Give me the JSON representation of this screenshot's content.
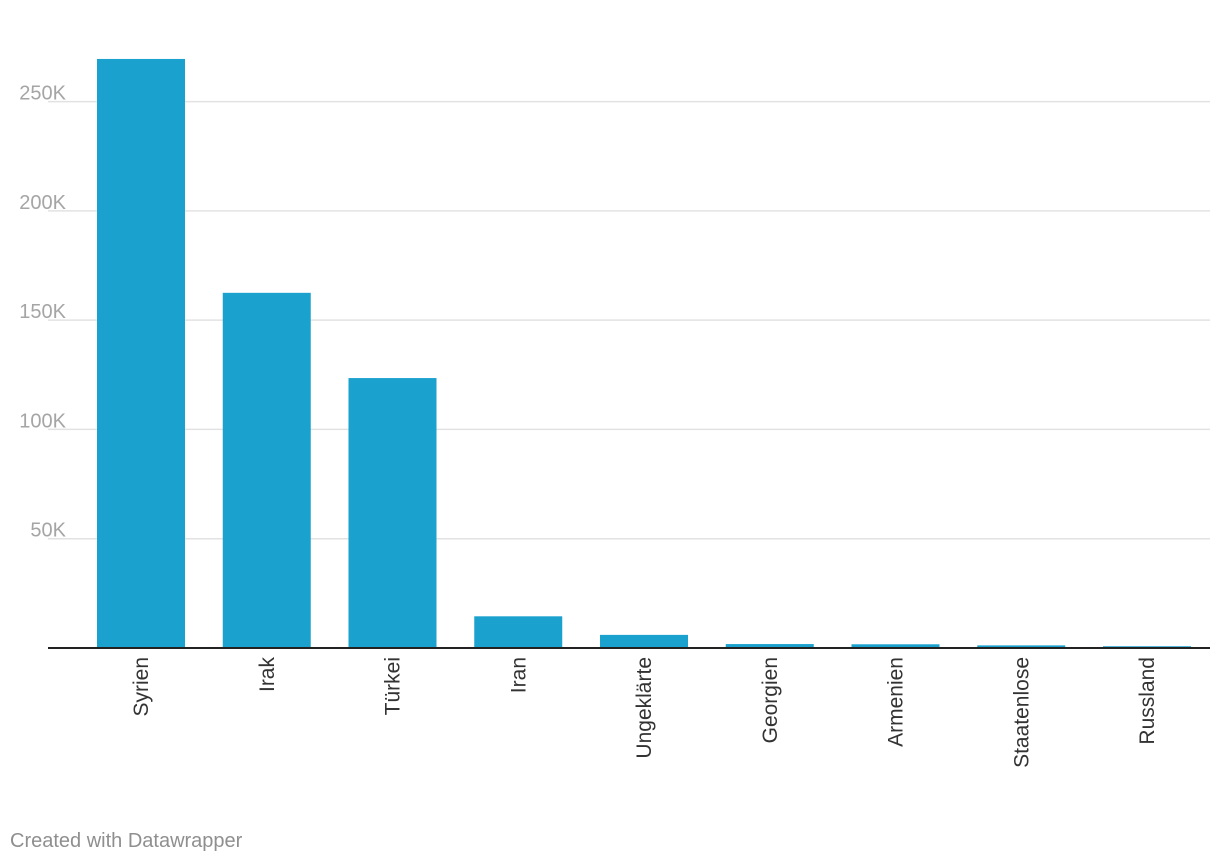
{
  "chart_data": {
    "type": "bar",
    "categories": [
      "Syrien",
      "Irak",
      "Türkei",
      "Iran",
      "Ungeklärte",
      "Georgien",
      "Armenien",
      "Staatenlose",
      "Russland"
    ],
    "values": [
      269500,
      162500,
      123500,
      14500,
      6000,
      1800,
      1700,
      1200,
      800
    ],
    "ylim": [
      0,
      280000
    ],
    "yticks": [
      {
        "value": 50000,
        "label": "50K"
      },
      {
        "value": 100000,
        "label": "100K"
      },
      {
        "value": 150000,
        "label": "150K"
      },
      {
        "value": 200000,
        "label": "200K"
      },
      {
        "value": 250000,
        "label": "250K"
      }
    ],
    "bar_color": "#1aa1cd",
    "grid": true,
    "title": "",
    "xlabel": "",
    "ylabel": ""
  },
  "footer": {
    "credit": "Created with Datawrapper"
  }
}
